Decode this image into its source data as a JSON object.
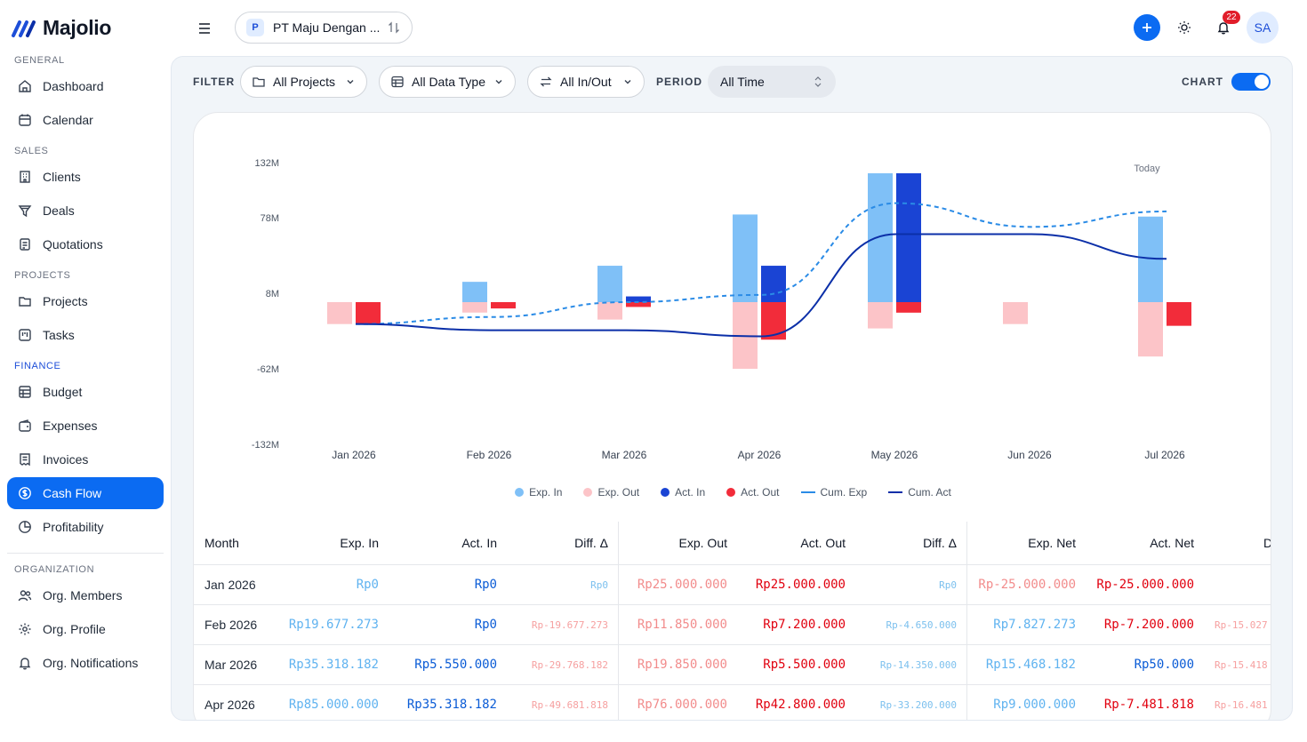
{
  "app": {
    "name": "Majolio"
  },
  "sidebar": {
    "sections": [
      {
        "label": "GENERAL",
        "items": [
          {
            "label": "Dashboard",
            "icon": "home-icon"
          },
          {
            "label": "Calendar",
            "icon": "calendar-icon"
          }
        ]
      },
      {
        "label": "SALES",
        "items": [
          {
            "label": "Clients",
            "icon": "building-icon"
          },
          {
            "label": "Deals",
            "icon": "funnel-icon"
          },
          {
            "label": "Quotations",
            "icon": "document-icon"
          }
        ]
      },
      {
        "label": "PROJECTS",
        "items": [
          {
            "label": "Projects",
            "icon": "folder-icon"
          },
          {
            "label": "Tasks",
            "icon": "kanban-icon"
          }
        ]
      },
      {
        "label": "FINANCE",
        "items": [
          {
            "label": "Budget",
            "icon": "ledger-icon"
          },
          {
            "label": "Expenses",
            "icon": "wallet-icon"
          },
          {
            "label": "Invoices",
            "icon": "receipt-icon"
          },
          {
            "label": "Cash Flow",
            "icon": "dollar-circle-icon",
            "active": true
          },
          {
            "label": "Profitability",
            "icon": "pie-icon"
          }
        ]
      },
      {
        "label": "ORGANIZATION",
        "items": [
          {
            "label": "Org. Members",
            "icon": "users-icon"
          },
          {
            "label": "Org. Profile",
            "icon": "gear-icon"
          },
          {
            "label": "Org. Notifications",
            "icon": "bell-icon"
          }
        ]
      }
    ]
  },
  "topbar": {
    "company_badge": "P",
    "company_name": "PT Maju Dengan ...",
    "notification_count": "22",
    "avatar_initials": "SA"
  },
  "filters": {
    "filter_label": "FILTER",
    "projects": "All Projects",
    "data_type": "All Data Type",
    "in_out": "All In/Out",
    "period_label": "PERIOD",
    "period_value": "All Time",
    "chart_label": "CHART",
    "chart_toggle_on": true
  },
  "chart_data": {
    "type": "bar",
    "categories": [
      "Jan 2026",
      "Feb 2026",
      "Mar 2026",
      "Apr 2026",
      "May 2026",
      "Jun 2026",
      "Jul 2026"
    ],
    "y_ticks": [
      "132M",
      "78M",
      "8M",
      "-62M",
      "-132M"
    ],
    "annotation": "Today",
    "series": [
      {
        "name": "Exp. In",
        "type": "bar",
        "color": "#7fc0f7",
        "values": [
          0,
          19.7,
          35.3,
          85,
          125,
          null,
          83
        ]
      },
      {
        "name": "Exp. Out",
        "type": "bar",
        "color": "#fcc4c8",
        "values": [
          -25,
          -11.9,
          -19.9,
          -76,
          -30,
          -25,
          -62
        ]
      },
      {
        "name": "Act. In",
        "type": "bar",
        "color": "#1a44d4",
        "values": [
          0,
          0,
          5.55,
          35.3,
          125,
          null,
          null
        ]
      },
      {
        "name": "Act. Out",
        "type": "bar",
        "color": "#f22c3a",
        "values": [
          -25,
          -7.2,
          -5.5,
          -42.8,
          -12,
          null,
          -27
        ]
      },
      {
        "name": "Cum. Exp",
        "type": "line",
        "color": "#2a8be6",
        "values": [
          -25,
          -17,
          0,
          7,
          96,
          73,
          88
        ]
      },
      {
        "name": "Cum. Act",
        "type": "line",
        "color": "#0b2fa8",
        "values": [
          -25,
          -32,
          -32,
          -39,
          66,
          66,
          42
        ]
      }
    ]
  },
  "table": {
    "headers": [
      "Month",
      "Exp. In",
      "Act. In",
      "Diff. Δ",
      "Exp. Out",
      "Act. Out",
      "Diff. Δ",
      "Exp. Net",
      "Act. Net",
      "D"
    ],
    "rows": [
      {
        "month": "Jan 2026",
        "exp_in": "Rp0",
        "act_in": "Rp0",
        "diff_in": "Rp0",
        "exp_out": "Rp25.000.000",
        "act_out": "Rp25.000.000",
        "diff_out": "Rp0",
        "exp_net": "Rp-25.000.000",
        "act_net": "Rp-25.000.000",
        "diff_net": ""
      },
      {
        "month": "Feb 2026",
        "exp_in": "Rp19.677.273",
        "act_in": "Rp0",
        "diff_in": "Rp-19.677.273",
        "exp_out": "Rp11.850.000",
        "act_out": "Rp7.200.000",
        "diff_out": "Rp-4.650.000",
        "exp_net": "Rp7.827.273",
        "act_net": "Rp-7.200.000",
        "diff_net": "Rp-15.027"
      },
      {
        "month": "Mar 2026",
        "exp_in": "Rp35.318.182",
        "act_in": "Rp5.550.000",
        "diff_in": "Rp-29.768.182",
        "exp_out": "Rp19.850.000",
        "act_out": "Rp5.500.000",
        "diff_out": "Rp-14.350.000",
        "exp_net": "Rp15.468.182",
        "act_net": "Rp50.000",
        "diff_net": "Rp-15.418"
      },
      {
        "month": "Apr 2026",
        "exp_in": "Rp85.000.000",
        "act_in": "Rp35.318.182",
        "diff_in": "Rp-49.681.818",
        "exp_out": "Rp76.000.000",
        "act_out": "Rp42.800.000",
        "diff_out": "Rp-33.200.000",
        "exp_net": "Rp9.000.000",
        "act_net": "Rp-7.481.818",
        "diff_net": "Rp-16.481"
      }
    ]
  }
}
